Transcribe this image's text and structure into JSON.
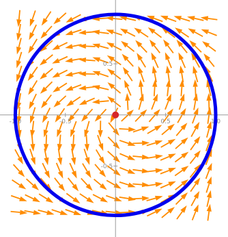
{
  "chart_data": {
    "type": "vector-field",
    "title": "",
    "xlabel": "",
    "ylabel": "",
    "xlim": [
      -1.03,
      1.0
    ],
    "ylim": [
      -1.02,
      1.01
    ],
    "x_ticks": [
      {
        "value": -1.0,
        "label": "-1.0"
      },
      {
        "value": -0.5,
        "label": "-0.5"
      },
      {
        "value": 0.5,
        "label": "0.5"
      },
      {
        "value": 1.0,
        "label": "1.0"
      }
    ],
    "y_ticks": [
      {
        "value": 0.5,
        "label": "0.5"
      },
      {
        "value": -0.5,
        "label": "-0.5"
      }
    ],
    "field": {
      "grid_n": 15,
      "arrow_color": "#ff8c00"
    },
    "circle": {
      "center": [
        0,
        0
      ],
      "radius": 1.0,
      "color": "#0000ee"
    },
    "point": {
      "x": 0,
      "y": 0,
      "color": "#d62728"
    },
    "grid": false,
    "legend": "none"
  }
}
